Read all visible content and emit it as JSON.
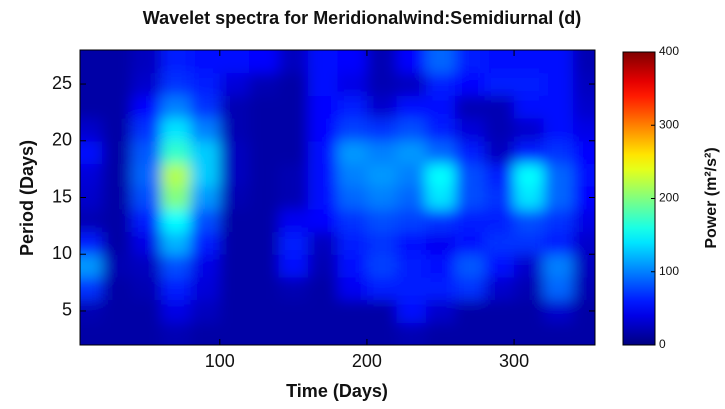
{
  "chart_data": {
    "type": "heatmap",
    "title": "Wavelet spectra for Meridionalwind:Semidiurnal (d)",
    "xlabel": "Time (Days)",
    "ylabel": "Period (Days)",
    "colorbar_label": "Power (m²/s²)",
    "xlim": [
      5,
      355
    ],
    "ylim": [
      2,
      28
    ],
    "xticks": [
      100,
      200,
      300
    ],
    "yticks": [
      5,
      10,
      15,
      20,
      25
    ],
    "clim": [
      0,
      400
    ],
    "cticks": [
      0,
      100,
      200,
      300,
      400
    ],
    "colormap": "jet",
    "x": [
      10,
      30,
      50,
      70,
      90,
      110,
      130,
      150,
      170,
      190,
      210,
      230,
      250,
      270,
      290,
      310,
      330,
      350
    ],
    "y": [
      3,
      5,
      7,
      9,
      11,
      13,
      15,
      17,
      19,
      21,
      23,
      25,
      27
    ],
    "z": [
      [
        15,
        15,
        15,
        20,
        15,
        15,
        15,
        15,
        15,
        15,
        15,
        20,
        15,
        15,
        15,
        15,
        15,
        15
      ],
      [
        20,
        15,
        15,
        40,
        25,
        15,
        15,
        15,
        15,
        15,
        15,
        55,
        30,
        15,
        15,
        15,
        30,
        15
      ],
      [
        70,
        15,
        20,
        60,
        35,
        15,
        15,
        20,
        15,
        45,
        60,
        60,
        60,
        70,
        30,
        20,
        90,
        20
      ],
      [
        110,
        20,
        25,
        80,
        40,
        15,
        15,
        55,
        20,
        55,
        75,
        60,
        55,
        85,
        55,
        30,
        100,
        25
      ],
      [
        60,
        15,
        40,
        120,
        60,
        15,
        15,
        60,
        25,
        60,
        70,
        55,
        45,
        55,
        70,
        70,
        60,
        30
      ],
      [
        20,
        15,
        60,
        150,
        80,
        15,
        15,
        45,
        50,
        70,
        80,
        75,
        70,
        60,
        60,
        80,
        70,
        40
      ],
      [
        30,
        15,
        80,
        200,
        110,
        20,
        15,
        20,
        55,
        90,
        100,
        90,
        140,
        80,
        70,
        140,
        90,
        50
      ],
      [
        35,
        15,
        90,
        220,
        130,
        25,
        15,
        20,
        55,
        100,
        110,
        100,
        150,
        80,
        60,
        150,
        90,
        55
      ],
      [
        55,
        15,
        85,
        170,
        130,
        25,
        15,
        15,
        55,
        110,
        100,
        110,
        90,
        60,
        25,
        60,
        70,
        50
      ],
      [
        30,
        15,
        70,
        140,
        100,
        20,
        15,
        15,
        50,
        75,
        70,
        80,
        60,
        35,
        20,
        30,
        55,
        40
      ],
      [
        15,
        15,
        50,
        100,
        70,
        20,
        15,
        15,
        50,
        60,
        30,
        55,
        55,
        20,
        20,
        55,
        55,
        30
      ],
      [
        15,
        15,
        30,
        70,
        60,
        35,
        20,
        15,
        55,
        40,
        20,
        25,
        60,
        50,
        60,
        60,
        55,
        25
      ],
      [
        15,
        15,
        25,
        60,
        55,
        55,
        50,
        25,
        55,
        50,
        20,
        50,
        90,
        60,
        55,
        55,
        55,
        20
      ]
    ]
  }
}
